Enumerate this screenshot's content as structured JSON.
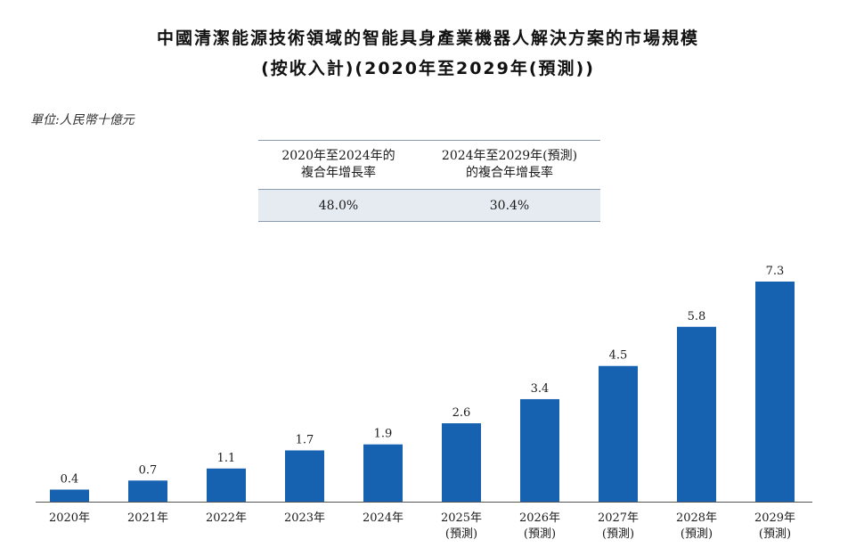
{
  "header": {
    "title_line1": "中國清潔能源技術領域的智能具身產業機器人解決方案的市場規模",
    "title_line2": "(按收入計)(2020年至2029年(預測))",
    "unit": "單位:人民幣十億元"
  },
  "cagr_table": {
    "col1_header_line1": "2020年至2024年的",
    "col1_header_line2": "複合年增長率",
    "col2_header_line1": "2024年至2029年(預測)",
    "col2_header_line2": "的複合年增長率",
    "col1_value": "48.0%",
    "col2_value": "30.4%"
  },
  "chart_data": {
    "type": "bar",
    "title": "中國清潔能源技術領域的智能具身產業機器人解決方案的市場規模(按收入計)(2020年至2029年(預測))",
    "ylabel": "人民幣十億元",
    "categories": [
      "2020年",
      "2021年",
      "2022年",
      "2023年",
      "2024年",
      "2025年",
      "2026年",
      "2027年",
      "2028年",
      "2029年"
    ],
    "category_sublabels": [
      "",
      "",
      "",
      "",
      "",
      "(預測)",
      "(預測)",
      "(預測)",
      "(預測)",
      "(預測)"
    ],
    "values": [
      0.4,
      0.7,
      1.1,
      1.7,
      1.9,
      2.6,
      3.4,
      4.5,
      5.8,
      7.3
    ],
    "value_labels": [
      "0.4",
      "0.7",
      "1.1",
      "1.7",
      "1.9",
      "2.6",
      "3.4",
      "4.5",
      "5.8",
      "7.3"
    ],
    "ylim": [
      0,
      7.3
    ],
    "grid": false,
    "bar_color": "#1661b0"
  }
}
